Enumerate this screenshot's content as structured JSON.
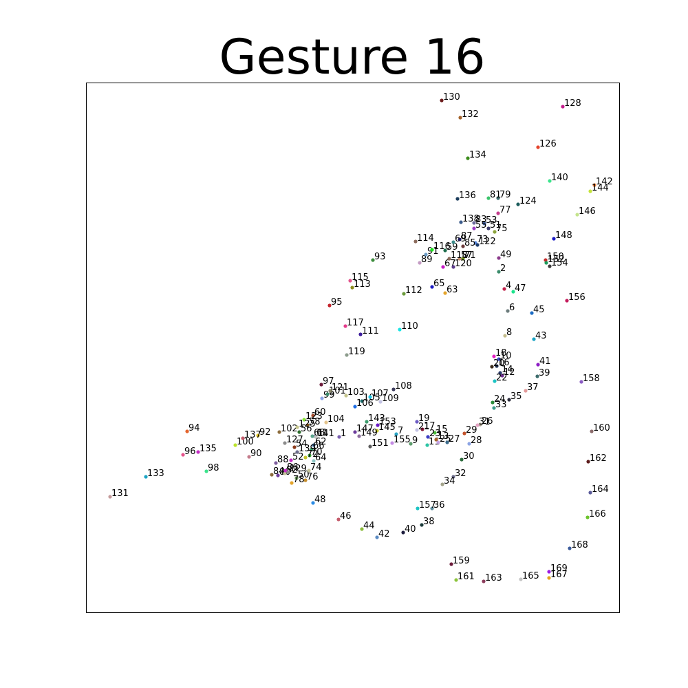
{
  "chart_data": {
    "type": "scatter",
    "title": "Gesture 16",
    "xlabel": "",
    "ylabel": "",
    "xlim": [
      0,
      1000
    ],
    "ylim": [
      1000,
      0
    ],
    "axes_visible": false,
    "grid": false,
    "legend": "none",
    "points": [
      {
        "label": "1",
        "x": 493,
        "y": 365,
        "color": "#7a5fb0"
      },
      {
        "label": "2",
        "x": 725,
        "y": 605,
        "color": "#3c8c6c"
      },
      {
        "label": "4",
        "x": 733,
        "y": 580,
        "color": "#c0224a"
      },
      {
        "label": "6",
        "x": 738,
        "y": 548,
        "color": "#6c7c7c"
      },
      {
        "label": "7",
        "x": 576,
        "y": 369,
        "color": "#2aa4c4"
      },
      {
        "label": "8",
        "x": 734,
        "y": 512,
        "color": "#c4bc8c"
      },
      {
        "label": "9",
        "x": 597,
        "y": 355,
        "color": "#5c9c6c"
      },
      {
        "label": "10",
        "x": 725,
        "y": 478,
        "color": "#3c4cc4"
      },
      {
        "label": "11",
        "x": 621,
        "y": 353,
        "color": "#2cc4a4"
      },
      {
        "label": "12",
        "x": 730,
        "y": 454,
        "color": "#6c2c8c"
      },
      {
        "label": "13",
        "x": 634,
        "y": 361,
        "color": "#a4642c"
      },
      {
        "label": "14",
        "x": 727,
        "y": 458,
        "color": "#2c3c6c"
      },
      {
        "label": "15",
        "x": 632,
        "y": 371,
        "color": "#4cbc3c"
      },
      {
        "label": "16",
        "x": 722,
        "y": 468,
        "color": "#1c2c4c"
      },
      {
        "label": "17",
        "x": 614,
        "y": 376,
        "color": "#8c1c3c"
      },
      {
        "label": "18",
        "x": 718,
        "y": 482,
        "color": "#e424c4"
      },
      {
        "label": "19",
        "x": 606,
        "y": 387,
        "color": "#6c5cc4"
      },
      {
        "label": "20",
        "x": 715,
        "y": 467,
        "color": "#3c2c1c"
      },
      {
        "label": "21",
        "x": 606,
        "y": 375,
        "color": "#c4c4e4"
      },
      {
        "label": "22",
        "x": 719,
        "y": 446,
        "color": "#1cc4c4"
      },
      {
        "label": "23",
        "x": 622,
        "y": 365,
        "color": "#3c3cc4"
      },
      {
        "label": "24",
        "x": 716,
        "y": 415,
        "color": "#2c8c3c"
      },
      {
        "label": "25",
        "x": 637,
        "y": 357,
        "color": "#c4a4e4"
      },
      {
        "label": "26",
        "x": 698,
        "y": 383,
        "color": "#a49c8c"
      },
      {
        "label": "27",
        "x": 650,
        "y": 357,
        "color": "#3c6c8c"
      },
      {
        "label": "28",
        "x": 682,
        "y": 355,
        "color": "#8ca4e4"
      },
      {
        "label": "29",
        "x": 675,
        "y": 370,
        "color": "#c4542c"
      },
      {
        "label": "30",
        "x": 671,
        "y": 332,
        "color": "#2c6c3c"
      },
      {
        "label": "31",
        "x": 694,
        "y": 382,
        "color": "#e4a4c4"
      },
      {
        "label": "32",
        "x": 659,
        "y": 307,
        "color": "#6c6c8c"
      },
      {
        "label": "33",
        "x": 718,
        "y": 407,
        "color": "#3c9c8c"
      },
      {
        "label": "34",
        "x": 643,
        "y": 296,
        "color": "#a4a48c"
      },
      {
        "label": "35",
        "x": 740,
        "y": 419,
        "color": "#2c2c3c"
      },
      {
        "label": "36",
        "x": 628,
        "y": 261,
        "color": "#5c8c9c"
      },
      {
        "label": "37",
        "x": 764,
        "y": 432,
        "color": "#e49c9c"
      },
      {
        "label": "38",
        "x": 613,
        "y": 237,
        "color": "#1c3c3c"
      },
      {
        "label": "39",
        "x": 781,
        "y": 453,
        "color": "#3c6c6c"
      },
      {
        "label": "40",
        "x": 586,
        "y": 226,
        "color": "#1c1c3c"
      },
      {
        "label": "41",
        "x": 782,
        "y": 470,
        "color": "#8c1cc4"
      },
      {
        "label": "42",
        "x": 548,
        "y": 219,
        "color": "#5c8cc4"
      },
      {
        "label": "43",
        "x": 776,
        "y": 507,
        "color": "#1ca4c4"
      },
      {
        "label": "44",
        "x": 526,
        "y": 231,
        "color": "#8cbc3c"
      },
      {
        "label": "45",
        "x": 773,
        "y": 545,
        "color": "#1c6cc4"
      },
      {
        "label": "46",
        "x": 492,
        "y": 245,
        "color": "#c45c6c"
      },
      {
        "label": "47",
        "x": 746,
        "y": 576,
        "color": "#1ce48c"
      },
      {
        "label": "48",
        "x": 455,
        "y": 269,
        "color": "#2c8ce4"
      },
      {
        "label": "49",
        "x": 725,
        "y": 625,
        "color": "#8c3c8c"
      },
      {
        "label": "50",
        "x": 431,
        "y": 305,
        "color": "#6c9c5c"
      },
      {
        "label": "51",
        "x": 710,
        "y": 668,
        "color": "#3c3c6c"
      },
      {
        "label": "52",
        "x": 423,
        "y": 331,
        "color": "#c42cc4"
      },
      {
        "label": "53",
        "x": 704,
        "y": 675,
        "color": "#3c5c9c"
      },
      {
        "label": "54",
        "x": 428,
        "y": 350,
        "color": "#8c3c1c"
      },
      {
        "label": "55",
        "x": 689,
        "y": 668,
        "color": "#9c3cc4"
      },
      {
        "label": "56",
        "x": 435,
        "y": 372,
        "color": "#2c6c2c"
      },
      {
        "label": "57",
        "x": 668,
        "y": 624,
        "color": "#c48c6c"
      },
      {
        "label": "58",
        "x": 447,
        "y": 382,
        "color": "#8c5c1c"
      },
      {
        "label": "59",
        "x": 647,
        "y": 636,
        "color": "#1c6c4c"
      },
      {
        "label": "60",
        "x": 455,
        "y": 396,
        "color": "#a44c2c"
      },
      {
        "label": "61",
        "x": 458,
        "y": 366,
        "color": "#6c6c9c"
      },
      {
        "label": "62",
        "x": 456,
        "y": 353,
        "color": "#3c6c9c"
      },
      {
        "label": "63",
        "x": 647,
        "y": 574,
        "color": "#e4a42c"
      },
      {
        "label": "64",
        "x": 456,
        "y": 330,
        "color": "#8cc4c4"
      },
      {
        "label": "65",
        "x": 628,
        "y": 583,
        "color": "#1c1cc4"
      },
      {
        "label": "66",
        "x": 453,
        "y": 347,
        "color": "#3c9c6c"
      },
      {
        "label": "67",
        "x": 644,
        "y": 612,
        "color": "#c41cc4"
      },
      {
        "label": "68",
        "x": 454,
        "y": 366,
        "color": "#5ca48c"
      },
      {
        "label": "69",
        "x": 659,
        "y": 648,
        "color": "#3c8c8c"
      },
      {
        "label": "70",
        "x": 450,
        "y": 338,
        "color": "#3ca43c"
      },
      {
        "label": "71",
        "x": 673,
        "y": 624,
        "color": "#6c8c1c"
      },
      {
        "label": "72",
        "x": 444,
        "y": 335,
        "color": "#c4c42c"
      },
      {
        "label": "73",
        "x": 691,
        "y": 647,
        "color": "#5c8ce4"
      },
      {
        "label": "74",
        "x": 449,
        "y": 316,
        "color": "#c4c49c"
      },
      {
        "label": "75",
        "x": 719,
        "y": 663,
        "color": "#8ca43c"
      },
      {
        "label": "76",
        "x": 444,
        "y": 302,
        "color": "#c48c2c"
      },
      {
        "label": "77",
        "x": 724,
        "y": 690,
        "color": "#c43c8c"
      },
      {
        "label": "78",
        "x": 424,
        "y": 298,
        "color": "#e4a42c"
      },
      {
        "label": "79",
        "x": 724,
        "y": 712,
        "color": "#3c6c6c"
      },
      {
        "label": "80",
        "x": 404,
        "y": 309,
        "color": "#6c3c9c"
      },
      {
        "label": "81",
        "x": 710,
        "y": 712,
        "color": "#3cc46c"
      },
      {
        "label": "82",
        "x": 414,
        "y": 312,
        "color": "#c4c49c"
      },
      {
        "label": "83",
        "x": 689,
        "y": 676,
        "color": "#6c6c9c"
      },
      {
        "label": "84",
        "x": 395,
        "y": 310,
        "color": "#8c6c3c"
      },
      {
        "label": "85",
        "x": 673,
        "y": 642,
        "color": "#6c3c3c"
      },
      {
        "label": "86",
        "x": 415,
        "y": 316,
        "color": "#c42cc4"
      },
      {
        "label": "87",
        "x": 668,
        "y": 652,
        "color": "#1c1c5c"
      },
      {
        "label": "88",
        "x": 401,
        "y": 327,
        "color": "#7c5c9c"
      },
      {
        "label": "89",
        "x": 610,
        "y": 618,
        "color": "#c49cc4"
      },
      {
        "label": "90",
        "x": 362,
        "y": 336,
        "color": "#c47c8c"
      },
      {
        "label": "91",
        "x": 619,
        "y": 630,
        "color": "#6c9cc4"
      },
      {
        "label": "92",
        "x": 375,
        "y": 367,
        "color": "#e4c41c"
      },
      {
        "label": "93",
        "x": 542,
        "y": 622,
        "color": "#3c8c3c"
      },
      {
        "label": "94",
        "x": 272,
        "y": 373,
        "color": "#e4642c"
      },
      {
        "label": "95",
        "x": 479,
        "y": 556,
        "color": "#c4242c"
      },
      {
        "label": "96",
        "x": 266,
        "y": 339,
        "color": "#e4548c"
      },
      {
        "label": "97",
        "x": 467,
        "y": 441,
        "color": "#6c1c3c"
      },
      {
        "label": "98",
        "x": 300,
        "y": 315,
        "color": "#3ce48c"
      },
      {
        "label": "99",
        "x": 468,
        "y": 421,
        "color": "#8ca4e4"
      },
      {
        "label": "100",
        "x": 342,
        "y": 353,
        "color": "#bce42c"
      },
      {
        "label": "101",
        "x": 476,
        "y": 427,
        "color": "#3c8c6c"
      },
      {
        "label": "102",
        "x": 406,
        "y": 372,
        "color": "#8c6c3c"
      },
      {
        "label": "103",
        "x": 503,
        "y": 425,
        "color": "#c4c48c"
      },
      {
        "label": "104",
        "x": 474,
        "y": 386,
        "color": "#e4c48c"
      },
      {
        "label": "105",
        "x": 526,
        "y": 417,
        "color": "#1c6c6c"
      },
      {
        "label": "106",
        "x": 516,
        "y": 409,
        "color": "#1c6ce4"
      },
      {
        "label": "107",
        "x": 538,
        "y": 423,
        "color": "#1cc4e4"
      },
      {
        "label": "108",
        "x": 572,
        "y": 434,
        "color": "#3c3c5c"
      },
      {
        "label": "109",
        "x": 553,
        "y": 416,
        "color": "#c4c4e4"
      },
      {
        "label": "110",
        "x": 581,
        "y": 521,
        "color": "#1ce4e4"
      },
      {
        "label": "111",
        "x": 524,
        "y": 514,
        "color": "#3c1c9c"
      },
      {
        "label": "112",
        "x": 587,
        "y": 573,
        "color": "#6c9c3c"
      },
      {
        "label": "113",
        "x": 512,
        "y": 582,
        "color": "#8c8c1c"
      },
      {
        "label": "114",
        "x": 604,
        "y": 649,
        "color": "#8c6c5c"
      },
      {
        "label": "115",
        "x": 509,
        "y": 592,
        "color": "#e4548c"
      },
      {
        "label": "116",
        "x": 628,
        "y": 637,
        "color": "#1ce41c"
      },
      {
        "label": "117",
        "x": 502,
        "y": 526,
        "color": "#e43c8c"
      },
      {
        "label": "118",
        "x": 653,
        "y": 624,
        "color": "#8c6c5c"
      },
      {
        "label": "119",
        "x": 504,
        "y": 484,
        "color": "#8c9c8c"
      },
      {
        "label": "120",
        "x": 659,
        "y": 612,
        "color": "#5c3c8c"
      },
      {
        "label": "121",
        "x": 480,
        "y": 432,
        "color": "#8c8c6c"
      },
      {
        "label": "122",
        "x": 694,
        "y": 644,
        "color": "#1c3c6c"
      },
      {
        "label": "123",
        "x": 442,
        "y": 390,
        "color": "#8ce43c"
      },
      {
        "label": "124",
        "x": 753,
        "y": 703,
        "color": "#1c5c5c"
      },
      {
        "label": "125",
        "x": 432,
        "y": 379,
        "color": "#c4c48c"
      },
      {
        "label": "126",
        "x": 782,
        "y": 786,
        "color": "#e4442c"
      },
      {
        "label": "127",
        "x": 414,
        "y": 356,
        "color": "#8c8c8c"
      },
      {
        "label": "128",
        "x": 818,
        "y": 845,
        "color": "#c41c8c"
      },
      {
        "label": "129",
        "x": 419,
        "y": 314,
        "color": "#8c8c8c"
      },
      {
        "label": "130",
        "x": 642,
        "y": 854,
        "color": "#6c1c1c"
      },
      {
        "label": "131",
        "x": 160,
        "y": 278,
        "color": "#c49c9c"
      },
      {
        "label": "132",
        "x": 669,
        "y": 829,
        "color": "#a4642c"
      },
      {
        "label": "133",
        "x": 212,
        "y": 307,
        "color": "#1ca4c4"
      },
      {
        "label": "134",
        "x": 680,
        "y": 770,
        "color": "#3c8c1c"
      },
      {
        "label": "135",
        "x": 288,
        "y": 343,
        "color": "#c42cc4"
      },
      {
        "label": "136",
        "x": 665,
        "y": 711,
        "color": "#1c3c5c"
      },
      {
        "label": "137",
        "x": 353,
        "y": 363,
        "color": "#c45c6c"
      },
      {
        "label": "138",
        "x": 670,
        "y": 677,
        "color": "#3c5c8c"
      },
      {
        "label": "139",
        "x": 432,
        "y": 343,
        "color": "#6c6c8c"
      },
      {
        "label": "140",
        "x": 799,
        "y": 737,
        "color": "#3ce48c"
      },
      {
        "label": "141",
        "x": 459,
        "y": 365,
        "color": "#c4c4c4"
      },
      {
        "label": "142",
        "x": 864,
        "y": 731,
        "color": "#e47c3c"
      },
      {
        "label": "143",
        "x": 533,
        "y": 387,
        "color": "#3c9c6c"
      },
      {
        "label": "144",
        "x": 858,
        "y": 722,
        "color": "#c4e43c"
      },
      {
        "label": "145",
        "x": 548,
        "y": 374,
        "color": "#c4c42c"
      },
      {
        "label": "146",
        "x": 839,
        "y": 688,
        "color": "#c4e48c"
      },
      {
        "label": "147",
        "x": 516,
        "y": 372,
        "color": "#6c3c9c"
      },
      {
        "label": "148",
        "x": 805,
        "y": 653,
        "color": "#1c1cc4"
      },
      {
        "label": "149",
        "x": 522,
        "y": 366,
        "color": "#8c6c9c"
      },
      {
        "label": "150",
        "x": 793,
        "y": 622,
        "color": "#c42c2c"
      },
      {
        "label": "151",
        "x": 538,
        "y": 351,
        "color": "#5c5c5c"
      },
      {
        "label": "152",
        "x": 794,
        "y": 618,
        "color": "#1c9c5c"
      },
      {
        "label": "153",
        "x": 549,
        "y": 382,
        "color": "#6c1cc4"
      },
      {
        "label": "154",
        "x": 799,
        "y": 613,
        "color": "#3c3c3c"
      },
      {
        "label": "155",
        "x": 570,
        "y": 356,
        "color": "#c48ce4"
      },
      {
        "label": "156",
        "x": 824,
        "y": 563,
        "color": "#c41c5c"
      },
      {
        "label": "157",
        "x": 607,
        "y": 261,
        "color": "#1cc4c4"
      },
      {
        "label": "158",
        "x": 845,
        "y": 445,
        "color": "#8c5cc4"
      },
      {
        "label": "159",
        "x": 656,
        "y": 180,
        "color": "#6c1c3c"
      },
      {
        "label": "160",
        "x": 860,
        "y": 373,
        "color": "#8c6c6c"
      },
      {
        "label": "161",
        "x": 663,
        "y": 157,
        "color": "#8cc43c"
      },
      {
        "label": "162",
        "x": 855,
        "y": 329,
        "color": "#5c1c1c"
      },
      {
        "label": "163",
        "x": 703,
        "y": 155,
        "color": "#8c3c5c"
      },
      {
        "label": "164",
        "x": 858,
        "y": 284,
        "color": "#5c5c9c"
      },
      {
        "label": "165",
        "x": 757,
        "y": 158,
        "color": "#c4c4c4"
      },
      {
        "label": "166",
        "x": 854,
        "y": 248,
        "color": "#6cc42c"
      },
      {
        "label": "167",
        "x": 798,
        "y": 160,
        "color": "#e4a41c"
      },
      {
        "label": "168",
        "x": 828,
        "y": 203,
        "color": "#3c5c9c"
      },
      {
        "label": "169",
        "x": 798,
        "y": 169,
        "color": "#9c1ce4"
      }
    ]
  }
}
